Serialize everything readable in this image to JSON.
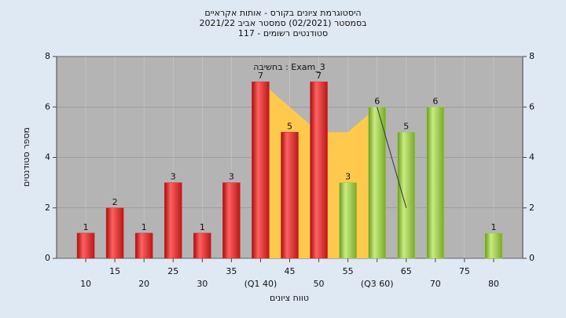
{
  "chart_data": {
    "type": "histogram",
    "title": [
      "היסטוגרמת ציונים בקורס - אותות אקראיים",
      "בסמסטר (02/2021) סמסטר אביב 2021/22",
      "סטודנטים רשומים - 117"
    ],
    "annotation": "בחשיבה : Exam_3",
    "xlabel": "טווח ציונים",
    "ylabel": "מספר סטודנטים",
    "x": [
      10,
      15,
      20,
      25,
      30,
      35,
      40,
      45,
      50,
      55,
      60,
      65,
      70,
      75,
      80
    ],
    "values": [
      1,
      2,
      1,
      3,
      1,
      3,
      7,
      5,
      7,
      3,
      6,
      5,
      6,
      null,
      1
    ],
    "colors": [
      "#e02020",
      "#e02020",
      "#e02020",
      "#e02020",
      "#e02020",
      "#e02020",
      "#e02020",
      "#e02020",
      "#e02020",
      "#9acd32",
      "#9acd32",
      "#9acd32",
      "#9acd32",
      "#9acd32",
      "#9acd32"
    ],
    "area": {
      "color": "#ffc94d",
      "x": [
        40,
        45,
        50,
        55,
        60
      ],
      "values": [
        7,
        6,
        5,
        5,
        6
      ]
    },
    "line": {
      "color": "#333333",
      "x": [
        60,
        65
      ],
      "values": [
        6,
        2
      ]
    },
    "xlim": [
      5,
      85
    ],
    "xticks": [
      10,
      15,
      20,
      25,
      30,
      35,
      {
        "value": 40,
        "label": "(Q1 40)"
      },
      45,
      50,
      55,
      {
        "value": 60,
        "label": "(Q3 60)"
      },
      65,
      70,
      75,
      80
    ],
    "ylim": [
      0,
      8
    ],
    "yticks": [
      0,
      2,
      4,
      6,
      8
    ],
    "y2lim": [
      0,
      8
    ],
    "y2ticks": [
      0,
      2,
      4,
      6,
      8
    ],
    "grid": true
  }
}
